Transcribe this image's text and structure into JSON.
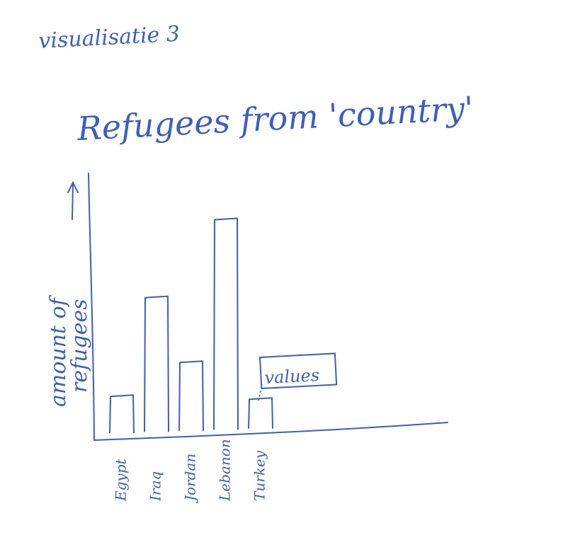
{
  "sketch": {
    "heading": "visualisatie 3",
    "ink_color": "#3a5fc0"
  },
  "chart_data": {
    "type": "bar",
    "title": "Refugees from 'country'",
    "ylabel": "amount of refugees",
    "xlabel": "",
    "categories": [
      "Egypt",
      "Iraq",
      "Jordan",
      "Lebanon",
      "Turkey"
    ],
    "values": [
      15,
      55,
      28,
      86,
      12
    ],
    "ylim": [
      0,
      100
    ],
    "annotation": {
      "text": "values",
      "target": "Turkey"
    },
    "grid": false,
    "legend": "none"
  }
}
